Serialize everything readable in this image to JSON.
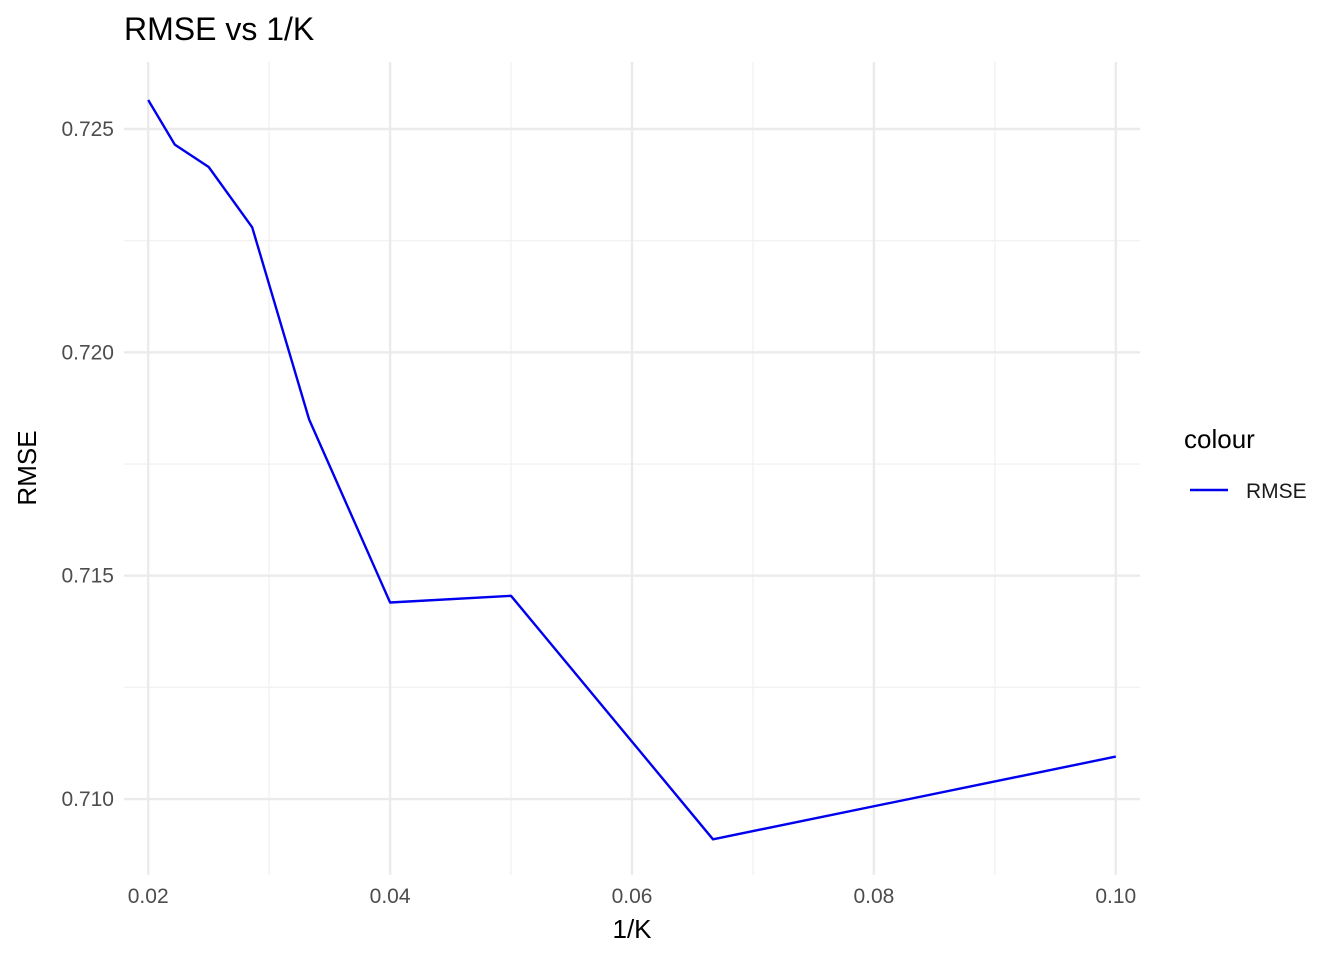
{
  "chart_data": {
    "type": "line",
    "title": "RMSE vs 1/K",
    "xlabel": "1/K",
    "ylabel": "RMSE",
    "xlim": [
      0.018,
      0.102
    ],
    "ylim": [
      0.7083,
      0.7265
    ],
    "x_ticks": [
      0.02,
      0.04,
      0.06,
      0.08,
      0.1
    ],
    "x_tick_labels": [
      "0.02",
      "0.04",
      "0.06",
      "0.08",
      "0.10"
    ],
    "x_minor_ticks": [
      0.03,
      0.05,
      0.07,
      0.09
    ],
    "y_ticks": [
      0.71,
      0.715,
      0.72,
      0.725
    ],
    "y_tick_labels": [
      "0.710",
      "0.715",
      "0.720",
      "0.725"
    ],
    "y_minor_ticks": [
      0.7125,
      0.7175,
      0.7225
    ],
    "grid": true,
    "legend": {
      "title": "colour",
      "placement": "right",
      "entries": [
        {
          "label": "RMSE",
          "color": "#0000ee"
        }
      ]
    },
    "series": [
      {
        "name": "RMSE",
        "color": "#0000ee",
        "x": [
          0.02,
          0.0222,
          0.025,
          0.0286,
          0.0333,
          0.04,
          0.05,
          0.0667,
          0.1
        ],
        "y": [
          0.72565,
          0.72465,
          0.72415,
          0.7228,
          0.7185,
          0.7144,
          0.71455,
          0.7091,
          0.71095
        ]
      }
    ]
  }
}
